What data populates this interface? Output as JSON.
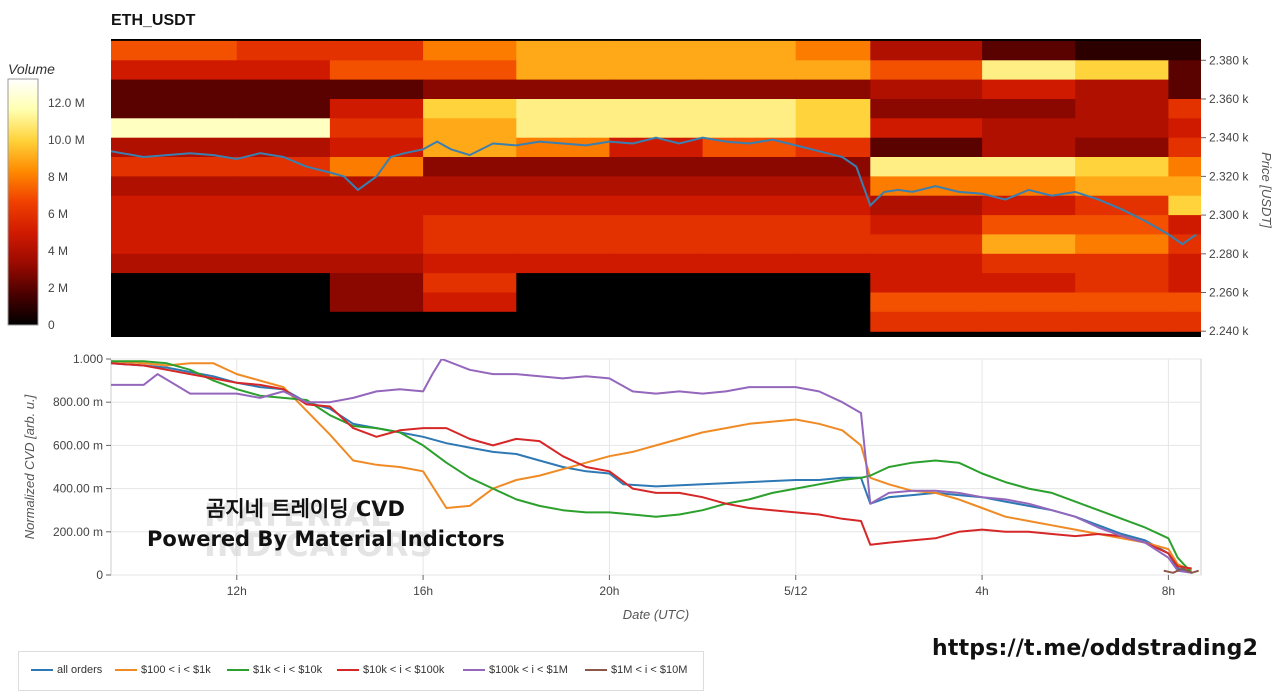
{
  "header": {
    "title": "ETH_USDT"
  },
  "colorbar": {
    "title": "Volume",
    "tick_labels": [
      "12.0 M",
      "10.0 M",
      "8 M",
      "6 M",
      "4 M",
      "2 M",
      "0"
    ],
    "tick_values": [
      12,
      10,
      8,
      6,
      4,
      2,
      0
    ],
    "range": [
      0,
      13.3
    ],
    "colors": [
      "#000000",
      "#4a0000",
      "#9a0a00",
      "#d01a00",
      "#f04000",
      "#ff8a00",
      "#ffd23a",
      "#ffffb0",
      "#ffffff"
    ]
  },
  "heatmap_axis": {
    "ylabel": "Price [USDT]",
    "tick_labels": [
      "2.380 k",
      "2.360 k",
      "2.340 k",
      "2.320 k",
      "2.300 k",
      "2.280 k",
      "2.260 k",
      "2.240 k"
    ],
    "tick_values": [
      2380,
      2360,
      2340,
      2320,
      2300,
      2280,
      2260,
      2240
    ]
  },
  "cvd_axis": {
    "ylabel": "Normalized CVD [arb. u.]",
    "xlabel": "Date (UTC)",
    "y_tick_labels": [
      "1.000",
      "800.00 m",
      "600.00 m",
      "400.00 m",
      "200.00 m",
      "0"
    ],
    "y_tick_values": [
      1.0,
      0.8,
      0.6,
      0.4,
      0.2,
      0
    ],
    "x_tick_labels": [
      "12h",
      "16h",
      "20h",
      "5/12",
      "4h",
      "8h"
    ],
    "x_tick_values": [
      12,
      16,
      20,
      24,
      28,
      32
    ]
  },
  "overlay": {
    "line1": "곰지네 트레이딩 CVD",
    "line2": "Powered By Material Indictors",
    "watermark_line1": "MATERIAL",
    "watermark_line2": "INDICATORS"
  },
  "footer": {
    "telegram": "https://t.me/oddstrading2"
  },
  "legend": [
    {
      "label": "all orders",
      "color": "#2e78b4"
    },
    {
      "label": "$100 < i < $1k",
      "color": "#f08a24"
    },
    {
      "label": "$1k < i < $10k",
      "color": "#2ca02c"
    },
    {
      "label": "$10k < i < $100k",
      "color": "#d62728"
    },
    {
      "label": "$100k < i < $1M",
      "color": "#9467bd"
    },
    {
      "label": "$1M < i < $10M",
      "color": "#8c564b"
    }
  ],
  "chart_data": [
    {
      "type": "heatmap",
      "title": "ETH_USDT",
      "ylabel": "Price [USDT]",
      "x_range_hours": [
        9.3,
        32.7
      ],
      "ylim": [
        2237,
        2391
      ],
      "price_series": {
        "name": "Price",
        "color": "#3a7fb0",
        "x": [
          9.3,
          10,
          10.5,
          11,
          11.5,
          12,
          12.5,
          13,
          13.5,
          14,
          14.3,
          14.6,
          15,
          15.3,
          15.6,
          16,
          16.3,
          16.6,
          17,
          17.5,
          18,
          18.5,
          19,
          19.5,
          20,
          20.5,
          21,
          21.5,
          22,
          22.5,
          23,
          23.5,
          24,
          24.5,
          25,
          25.3,
          25.6,
          25.9,
          26.2,
          26.5,
          27,
          27.5,
          28,
          28.5,
          29,
          29.5,
          30,
          30.5,
          31,
          31.5,
          32,
          32.3,
          32.6
        ],
        "y": [
          2333,
          2330,
          2331,
          2332,
          2331,
          2329,
          2332,
          2330,
          2325,
          2322,
          2320,
          2313,
          2320,
          2330,
          2332,
          2334,
          2338,
          2334,
          2331,
          2337,
          2336,
          2338,
          2337,
          2336,
          2338,
          2337,
          2340,
          2337,
          2340,
          2338,
          2337,
          2339,
          2336,
          2333,
          2330,
          2325,
          2305,
          2312,
          2313,
          2312,
          2315,
          2312,
          2311,
          2308,
          2313,
          2310,
          2312,
          2308,
          2303,
          2297,
          2290,
          2285,
          2290
        ]
      },
      "rows_price": [
        2380,
        2370,
        2360,
        2350,
        2340,
        2330,
        2320,
        2310,
        2300,
        2290,
        2280,
        2270,
        2260,
        2250,
        2240
      ],
      "segment_bounds_hours": [
        9.3,
        12,
        14,
        16,
        18,
        20,
        22,
        24,
        25.6,
        28,
        30,
        32,
        32.7
      ],
      "volume_millions": [
        [
          7,
          6,
          6,
          8,
          9,
          9,
          9,
          8,
          4,
          2,
          1,
          1
        ],
        [
          5,
          5,
          7,
          7,
          9,
          9,
          9,
          9,
          7,
          11,
          10,
          2
        ],
        [
          2,
          2,
          2,
          3,
          3,
          3,
          3,
          3,
          4,
          5,
          4,
          2
        ],
        [
          2,
          2,
          5,
          10,
          11,
          11,
          11,
          10,
          3,
          3,
          4,
          6
        ],
        [
          12,
          12,
          6,
          9,
          11,
          11,
          11,
          10,
          5,
          4,
          4,
          5
        ],
        [
          4,
          4,
          5,
          9,
          8,
          5,
          7,
          6,
          2,
          4,
          3,
          6
        ],
        [
          6,
          6,
          8,
          3,
          3,
          3,
          3,
          3,
          11,
          11,
          10,
          8
        ],
        [
          4,
          4,
          4,
          4,
          4,
          4,
          4,
          4,
          8,
          8,
          9,
          9
        ],
        [
          5,
          5,
          5,
          5,
          5,
          5,
          5,
          5,
          4,
          5,
          6,
          10
        ],
        [
          5,
          5,
          5,
          6,
          6,
          6,
          6,
          6,
          5,
          7,
          7,
          5
        ],
        [
          5,
          5,
          5,
          6,
          6,
          6,
          6,
          6,
          6,
          9,
          8,
          6
        ],
        [
          4,
          4,
          4,
          5,
          5,
          5,
          5,
          5,
          5,
          6,
          6,
          5
        ],
        [
          0,
          0,
          3,
          6,
          0,
          0,
          0,
          0,
          5,
          5,
          6,
          5
        ],
        [
          0,
          0,
          3,
          5,
          0,
          0,
          0,
          0,
          7,
          7,
          7,
          7
        ],
        [
          0,
          0,
          0,
          0,
          0,
          0,
          0,
          0,
          6,
          6,
          6,
          6
        ]
      ]
    },
    {
      "type": "line",
      "xlabel": "Date (UTC)",
      "ylabel": "Normalized CVD [arb. u.]",
      "xlim": [
        9.3,
        32.7
      ],
      "ylim": [
        0,
        1.0
      ],
      "series": [
        {
          "name": "all orders",
          "color": "#2e78b4",
          "x": [
            9.3,
            10,
            10.5,
            11,
            11.5,
            12,
            12.5,
            13,
            13.5,
            14,
            14.5,
            15,
            15.5,
            16,
            16.5,
            17,
            17.5,
            18,
            18.5,
            19,
            19.5,
            20,
            20.3,
            21,
            22,
            23,
            24,
            24.5,
            25,
            25.4,
            25.6,
            26,
            26.5,
            27,
            27.5,
            28,
            28.5,
            29,
            29.5,
            30,
            30.5,
            31,
            31.5,
            32,
            32.2,
            32.5
          ],
          "y": [
            0.98,
            0.97,
            0.96,
            0.94,
            0.92,
            0.89,
            0.87,
            0.86,
            0.8,
            0.77,
            0.7,
            0.68,
            0.66,
            0.64,
            0.61,
            0.59,
            0.57,
            0.56,
            0.53,
            0.5,
            0.48,
            0.47,
            0.42,
            0.41,
            0.42,
            0.43,
            0.44,
            0.44,
            0.45,
            0.45,
            0.33,
            0.36,
            0.37,
            0.38,
            0.37,
            0.36,
            0.34,
            0.32,
            0.3,
            0.27,
            0.23,
            0.19,
            0.16,
            0.1,
            0.03,
            0.01
          ]
        },
        {
          "name": "$100 < i < $1k",
          "color": "#f08a24",
          "x": [
            9.3,
            10,
            10.5,
            11,
            11.5,
            12,
            12.5,
            13,
            13.5,
            14,
            14.5,
            15,
            15.5,
            16,
            16.5,
            17,
            17.5,
            18,
            18.5,
            19,
            19.5,
            20,
            20.5,
            21,
            21.5,
            22,
            22.5,
            23,
            23.5,
            24,
            24.5,
            25,
            25.4,
            25.6,
            26,
            26.5,
            27,
            27.5,
            28,
            28.5,
            29,
            29.5,
            30,
            30.5,
            31,
            31.5,
            32,
            32.2,
            32.5
          ],
          "y": [
            0.99,
            0.98,
            0.97,
            0.98,
            0.98,
            0.93,
            0.9,
            0.87,
            0.76,
            0.65,
            0.53,
            0.51,
            0.5,
            0.48,
            0.31,
            0.32,
            0.4,
            0.44,
            0.46,
            0.49,
            0.52,
            0.55,
            0.57,
            0.6,
            0.63,
            0.66,
            0.68,
            0.7,
            0.71,
            0.72,
            0.7,
            0.67,
            0.6,
            0.45,
            0.42,
            0.39,
            0.38,
            0.35,
            0.31,
            0.27,
            0.25,
            0.23,
            0.21,
            0.19,
            0.17,
            0.15,
            0.12,
            0.05,
            0.02
          ]
        },
        {
          "name": "$1k < i < $10k",
          "color": "#2ca02c",
          "x": [
            9.3,
            10,
            10.5,
            11,
            11.5,
            12,
            12.5,
            13,
            13.5,
            14,
            14.5,
            15,
            15.5,
            16,
            16.5,
            17,
            17.5,
            18,
            18.5,
            19,
            19.5,
            20,
            20.5,
            21,
            21.5,
            22,
            22.5,
            23,
            23.5,
            24,
            24.5,
            25,
            25.4,
            25.6,
            26,
            26.5,
            27,
            27.5,
            28,
            28.5,
            29,
            29.5,
            30,
            30.5,
            31,
            31.5,
            32,
            32.2,
            32.5
          ],
          "y": [
            0.99,
            0.99,
            0.98,
            0.95,
            0.9,
            0.86,
            0.83,
            0.82,
            0.81,
            0.74,
            0.69,
            0.68,
            0.66,
            0.6,
            0.52,
            0.45,
            0.4,
            0.35,
            0.32,
            0.3,
            0.29,
            0.29,
            0.28,
            0.27,
            0.28,
            0.3,
            0.33,
            0.35,
            0.38,
            0.4,
            0.42,
            0.44,
            0.45,
            0.46,
            0.5,
            0.52,
            0.53,
            0.52,
            0.47,
            0.43,
            0.4,
            0.38,
            0.34,
            0.3,
            0.26,
            0.22,
            0.17,
            0.08,
            0.01
          ]
        },
        {
          "name": "$10k < i < $100k",
          "color": "#d62728",
          "x": [
            9.3,
            10,
            10.5,
            11,
            11.5,
            12,
            12.5,
            13,
            13.5,
            14,
            14.5,
            15,
            15.5,
            16,
            16.5,
            17,
            17.5,
            18,
            18.5,
            19,
            19.5,
            20,
            20.5,
            21,
            21.5,
            22,
            22.5,
            23,
            23.5,
            24,
            24.5,
            25,
            25.4,
            25.6,
            26,
            26.5,
            27,
            27.5,
            28,
            28.5,
            29,
            29.5,
            30,
            30.5,
            31,
            31.5,
            32,
            32.2,
            32.5
          ],
          "y": [
            0.98,
            0.97,
            0.95,
            0.93,
            0.91,
            0.89,
            0.88,
            0.86,
            0.79,
            0.78,
            0.68,
            0.64,
            0.67,
            0.68,
            0.68,
            0.63,
            0.6,
            0.63,
            0.62,
            0.55,
            0.5,
            0.48,
            0.4,
            0.38,
            0.38,
            0.36,
            0.33,
            0.31,
            0.3,
            0.29,
            0.28,
            0.26,
            0.25,
            0.14,
            0.15,
            0.16,
            0.17,
            0.2,
            0.21,
            0.2,
            0.2,
            0.19,
            0.18,
            0.19,
            0.18,
            0.15,
            0.1,
            0.04,
            0.03
          ]
        },
        {
          "name": "$100k < i < $1M",
          "color": "#9467bd",
          "x": [
            9.3,
            10,
            10.3,
            11,
            11.5,
            12,
            12.5,
            13,
            13.5,
            14,
            14.5,
            15,
            15.5,
            16,
            16.2,
            16.4,
            17,
            17.5,
            18,
            18.5,
            19,
            19.5,
            20,
            20.5,
            21,
            21.5,
            22,
            22.5,
            23,
            23.5,
            24,
            24.5,
            25,
            25.4,
            25.6,
            26,
            26.5,
            27,
            27.5,
            28,
            28.5,
            29,
            29.5,
            30,
            30.5,
            31,
            31.5,
            32,
            32.2,
            32.5
          ],
          "y": [
            0.88,
            0.88,
            0.93,
            0.84,
            0.84,
            0.84,
            0.82,
            0.85,
            0.8,
            0.8,
            0.82,
            0.85,
            0.86,
            0.85,
            0.93,
            1.0,
            0.95,
            0.93,
            0.93,
            0.92,
            0.91,
            0.92,
            0.91,
            0.85,
            0.84,
            0.85,
            0.84,
            0.85,
            0.87,
            0.87,
            0.87,
            0.85,
            0.8,
            0.75,
            0.33,
            0.38,
            0.39,
            0.39,
            0.38,
            0.36,
            0.35,
            0.33,
            0.3,
            0.27,
            0.22,
            0.18,
            0.15,
            0.08,
            0.02,
            0.01
          ]
        },
        {
          "name": "$1M < i < $10M",
          "color": "#8c564b",
          "x": [
            31.9,
            32.1,
            32.3,
            32.5,
            32.65
          ],
          "y": [
            0.02,
            0.01,
            0.03,
            0.01,
            0.02
          ]
        }
      ]
    }
  ]
}
